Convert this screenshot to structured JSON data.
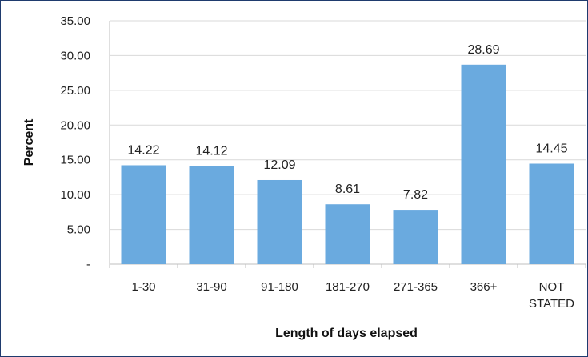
{
  "chart_data": {
    "type": "bar",
    "title": "",
    "xlabel": "Length of days elapsed",
    "ylabel": "Percent",
    "categories": [
      [
        "1-30"
      ],
      [
        "31-90"
      ],
      [
        "91-180"
      ],
      [
        "181-270"
      ],
      [
        "271-365"
      ],
      [
        "366+"
      ],
      [
        "NOT",
        "STATED"
      ]
    ],
    "values": [
      14.22,
      14.12,
      12.09,
      8.61,
      7.82,
      28.69,
      14.45
    ],
    "data_labels": [
      "14.22",
      "14.12",
      "12.09",
      "8.61",
      "7.82",
      "28.69",
      "14.45"
    ],
    "y_ticks": [
      {
        "value": 0,
        "label": "-"
      },
      {
        "value": 5,
        "label": "5.00"
      },
      {
        "value": 10,
        "label": "10.00"
      },
      {
        "value": 15,
        "label": "15.00"
      },
      {
        "value": 20,
        "label": "20.00"
      },
      {
        "value": 25,
        "label": "25.00"
      },
      {
        "value": 30,
        "label": "30.00"
      },
      {
        "value": 35,
        "label": "35.00"
      }
    ],
    "ylim": [
      0,
      35
    ],
    "grid": "horizontal",
    "legend": "none",
    "colors": {
      "bar": "#6aaadf",
      "grid": "#d9d9d9",
      "axis": "#bfbfbf",
      "border": "#1f3b6e"
    }
  }
}
